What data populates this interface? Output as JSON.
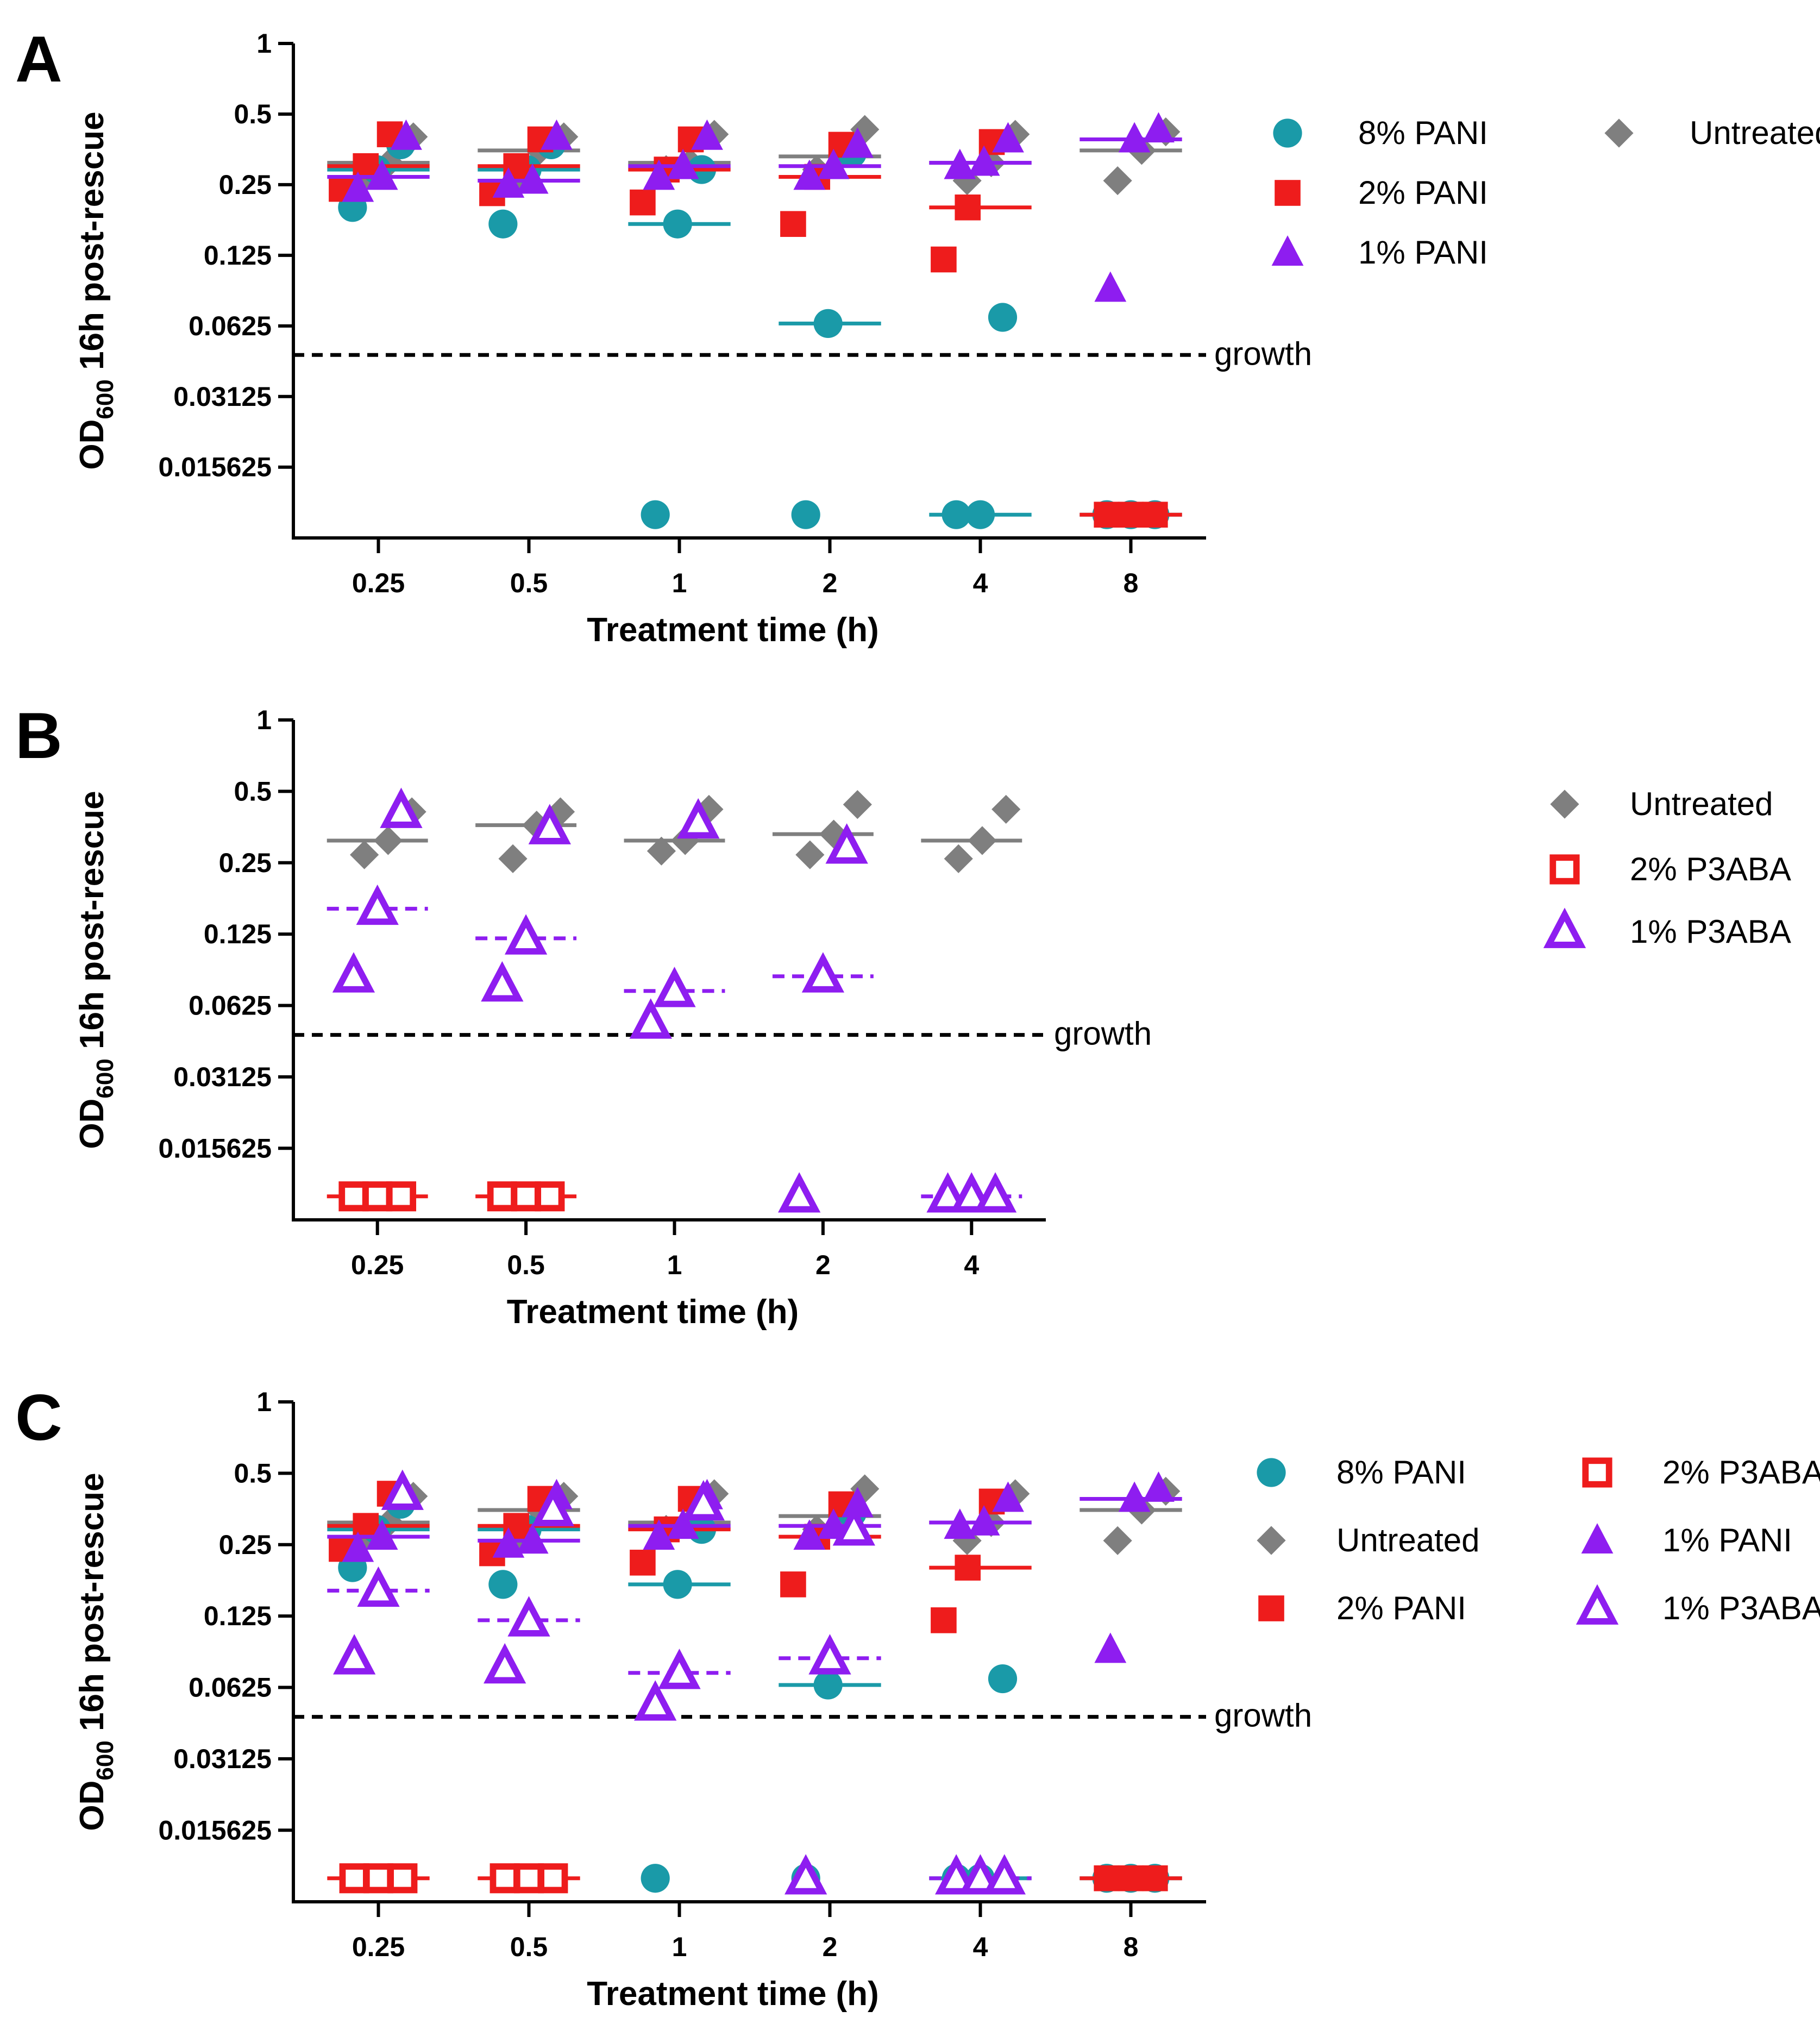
{
  "colors": {
    "pani8": "#1a9aa8",
    "pani2": "#ee1c1c",
    "pani1": "#8e1df0",
    "untreated": "#7f7f7f",
    "p3aba2": "#ee1c1c",
    "p3aba1": "#8e1df0",
    "axis": "#000000"
  },
  "series_meta": {
    "pani8": {
      "name": "8% PANI",
      "marker": "circle",
      "fill": true,
      "median_style": "solid"
    },
    "pani2": {
      "name": "2% PANI",
      "marker": "square",
      "fill": true,
      "median_style": "solid"
    },
    "pani1": {
      "name": "1% PANI",
      "marker": "triangle",
      "fill": true,
      "median_style": "solid"
    },
    "untreated": {
      "name": "Untreated",
      "marker": "diamond",
      "fill": true,
      "median_style": "solid"
    },
    "p3aba2": {
      "name": "2% P3ABA",
      "marker": "square",
      "fill": false,
      "median_style": "solid"
    },
    "p3aba1": {
      "name": "1% P3ABA",
      "marker": "triangle",
      "fill": false,
      "median_style": "dashed"
    }
  },
  "chart_data": [
    {
      "panel": "A",
      "type": "scatter",
      "xlabel": "Treatment time (h)",
      "ylabel_main": "OD",
      "ylabel_sub": "600",
      "ylabel_rest": " 16h post-rescue",
      "categories": [
        "0.25",
        "0.5",
        "1",
        "2",
        "4",
        "8"
      ],
      "yscale": "log2",
      "ylim": [
        0.0078,
        1
      ],
      "yticks": [
        "1",
        "0.5",
        "0.25",
        "0.125",
        "0.0625",
        "0.03125",
        "0.015625"
      ],
      "threshold": {
        "value": 0.047,
        "label": "growth"
      },
      "legend_order": [
        "pani8",
        "pani2",
        "pani1",
        "untreated"
      ],
      "series": [
        {
          "key": "pani8",
          "points": [
            [
              0.25,
              0.2
            ],
            [
              0.25,
              0.29
            ],
            [
              0.25,
              0.37
            ],
            [
              0.5,
              0.17
            ],
            [
              0.5,
              0.29
            ],
            [
              0.5,
              0.37
            ],
            [
              1,
              0.0098
            ],
            [
              1,
              0.17
            ],
            [
              1,
              0.29
            ],
            [
              2,
              0.0098
            ],
            [
              2,
              0.064
            ],
            [
              2,
              0.34
            ],
            [
              4,
              0.0098
            ],
            [
              4,
              0.0098
            ],
            [
              4,
              0.068
            ],
            [
              8,
              0.0098
            ],
            [
              8,
              0.0098
            ],
            [
              8,
              0.0098
            ]
          ],
          "medians": [
            0.29,
            0.29,
            0.17,
            0.064,
            0.0098,
            0.0098
          ]
        },
        {
          "key": "pani2",
          "points": [
            [
              0.25,
              0.24
            ],
            [
              0.25,
              0.3
            ],
            [
              0.25,
              0.41
            ],
            [
              0.5,
              0.23
            ],
            [
              0.5,
              0.3
            ],
            [
              0.5,
              0.39
            ],
            [
              1,
              0.21
            ],
            [
              1,
              0.29
            ],
            [
              1,
              0.39
            ],
            [
              2,
              0.17
            ],
            [
              2,
              0.27
            ],
            [
              2,
              0.37
            ],
            [
              4,
              0.12
            ],
            [
              4,
              0.2
            ],
            [
              4,
              0.38
            ],
            [
              8,
              0.0098
            ],
            [
              8,
              0.0098
            ],
            [
              8,
              0.0098
            ]
          ],
          "medians": [
            0.3,
            0.3,
            0.29,
            0.27,
            0.2,
            0.0098
          ]
        },
        {
          "key": "pani1",
          "points": [
            [
              0.25,
              0.24
            ],
            [
              0.25,
              0.27
            ],
            [
              0.25,
              0.4
            ],
            [
              0.5,
              0.25
            ],
            [
              0.5,
              0.26
            ],
            [
              0.5,
              0.4
            ],
            [
              1,
              0.27
            ],
            [
              1,
              0.3
            ],
            [
              1,
              0.4
            ],
            [
              2,
              0.27
            ],
            [
              2,
              0.3
            ],
            [
              2,
              0.37
            ],
            [
              4,
              0.3
            ],
            [
              4,
              0.31
            ],
            [
              4,
              0.39
            ],
            [
              8,
              0.09
            ],
            [
              8,
              0.39
            ],
            [
              8,
              0.43
            ]
          ],
          "medians": [
            0.27,
            0.26,
            0.3,
            0.3,
            0.31,
            0.39
          ]
        },
        {
          "key": "untreated",
          "points": [
            [
              0.25,
              0.27
            ],
            [
              0.25,
              0.31
            ],
            [
              0.25,
              0.4
            ],
            [
              0.5,
              0.26
            ],
            [
              0.5,
              0.35
            ],
            [
              0.5,
              0.4
            ],
            [
              1,
              0.29
            ],
            [
              1,
              0.31
            ],
            [
              1,
              0.41
            ],
            [
              2,
              0.29
            ],
            [
              2,
              0.33
            ],
            [
              2,
              0.43
            ],
            [
              4,
              0.26
            ],
            [
              4,
              0.31
            ],
            [
              4,
              0.41
            ],
            [
              8,
              0.26
            ],
            [
              8,
              0.35
            ],
            [
              8,
              0.42
            ]
          ],
          "medians": [
            0.31,
            0.35,
            0.31,
            0.33,
            0.31,
            0.35
          ]
        }
      ]
    },
    {
      "panel": "B",
      "type": "scatter",
      "xlabel": "Treatment time (h)",
      "ylabel_main": "OD",
      "ylabel_sub": "600",
      "ylabel_rest": " 16h post-rescue",
      "categories": [
        "0.25",
        "0.5",
        "1",
        "2",
        "4"
      ],
      "yscale": "log2",
      "ylim": [
        0.0078,
        1
      ],
      "yticks": [
        "1",
        "0.5",
        "0.25",
        "0.125",
        "0.0625",
        "0.03125",
        "0.015625"
      ],
      "threshold": {
        "value": 0.047,
        "label": "growth"
      },
      "legend_order": [
        "untreated",
        "p3aba2",
        "p3aba1"
      ],
      "series": [
        {
          "key": "untreated",
          "points": [
            [
              0.25,
              0.27
            ],
            [
              0.25,
              0.31
            ],
            [
              0.25,
              0.41
            ],
            [
              0.5,
              0.26
            ],
            [
              0.5,
              0.36
            ],
            [
              0.5,
              0.41
            ],
            [
              1,
              0.28
            ],
            [
              1,
              0.31
            ],
            [
              1,
              0.42
            ],
            [
              2,
              0.27
            ],
            [
              2,
              0.33
            ],
            [
              2,
              0.44
            ],
            [
              4,
              0.26
            ],
            [
              4,
              0.31
            ],
            [
              4,
              0.42
            ]
          ],
          "medians": [
            0.31,
            0.36,
            0.31,
            0.33,
            0.31
          ]
        },
        {
          "key": "p3aba2",
          "points": [
            [
              0.25,
              0.0098
            ],
            [
              0.25,
              0.0098
            ],
            [
              0.25,
              0.0098
            ],
            [
              0.5,
              0.0098
            ],
            [
              0.5,
              0.0098
            ],
            [
              0.5,
              0.0098
            ]
          ],
          "medians": [
            0.0098,
            0.0098,
            null,
            null,
            null
          ]
        },
        {
          "key": "p3aba1",
          "points": [
            [
              0.25,
              0.083
            ],
            [
              0.25,
              0.16
            ],
            [
              0.25,
              0.41
            ],
            [
              0.5,
              0.076
            ],
            [
              0.5,
              0.12
            ],
            [
              0.5,
              0.35
            ],
            [
              1,
              0.053
            ],
            [
              1,
              0.072
            ],
            [
              1,
              0.37
            ],
            [
              2,
              0.0098
            ],
            [
              2,
              0.083
            ],
            [
              2,
              0.29
            ],
            [
              4,
              0.0098
            ],
            [
              4,
              0.0098
            ],
            [
              4,
              0.0098
            ]
          ],
          "medians": [
            0.16,
            0.12,
            0.072,
            0.083,
            0.0098
          ]
        }
      ]
    },
    {
      "panel": "C",
      "type": "scatter",
      "xlabel": "Treatment time (h)",
      "ylabel_main": "OD",
      "ylabel_sub": "600",
      "ylabel_rest": " 16h post-rescue",
      "categories": [
        "0.25",
        "0.5",
        "1",
        "2",
        "4",
        "8"
      ],
      "yscale": "log2",
      "ylim": [
        0.0078,
        1
      ],
      "yticks": [
        "1",
        "0.5",
        "0.25",
        "0.125",
        "0.0625",
        "0.03125",
        "0.015625"
      ],
      "threshold": {
        "value": 0.047,
        "label": "growth"
      },
      "legend_order": [
        "pani8",
        "untreated",
        "pani2",
        "p3aba2",
        "pani1",
        "p3aba1"
      ],
      "series": [
        {
          "key": "pani8",
          "points": [
            [
              0.25,
              0.2
            ],
            [
              0.25,
              0.29
            ],
            [
              0.25,
              0.37
            ],
            [
              0.5,
              0.17
            ],
            [
              0.5,
              0.29
            ],
            [
              0.5,
              0.37
            ],
            [
              1,
              0.0098
            ],
            [
              1,
              0.17
            ],
            [
              1,
              0.29
            ],
            [
              2,
              0.0098
            ],
            [
              2,
              0.064
            ],
            [
              2,
              0.34
            ],
            [
              4,
              0.0098
            ],
            [
              4,
              0.0098
            ],
            [
              4,
              0.068
            ],
            [
              8,
              0.0098
            ],
            [
              8,
              0.0098
            ],
            [
              8,
              0.0098
            ]
          ],
          "medians": [
            0.29,
            0.29,
            0.17,
            0.064,
            0.0098,
            0.0098
          ]
        },
        {
          "key": "pani2",
          "points": [
            [
              0.25,
              0.24
            ],
            [
              0.25,
              0.3
            ],
            [
              0.25,
              0.41
            ],
            [
              0.5,
              0.23
            ],
            [
              0.5,
              0.3
            ],
            [
              0.5,
              0.39
            ],
            [
              1,
              0.21
            ],
            [
              1,
              0.29
            ],
            [
              1,
              0.39
            ],
            [
              2,
              0.17
            ],
            [
              2,
              0.27
            ],
            [
              2,
              0.37
            ],
            [
              4,
              0.12
            ],
            [
              4,
              0.2
            ],
            [
              4,
              0.38
            ],
            [
              8,
              0.0098
            ],
            [
              8,
              0.0098
            ],
            [
              8,
              0.0098
            ]
          ],
          "medians": [
            0.3,
            0.3,
            0.29,
            0.27,
            0.2,
            0.0098
          ]
        },
        {
          "key": "pani1",
          "points": [
            [
              0.25,
              0.24
            ],
            [
              0.25,
              0.27
            ],
            [
              0.25,
              0.4
            ],
            [
              0.5,
              0.25
            ],
            [
              0.5,
              0.26
            ],
            [
              0.5,
              0.4
            ],
            [
              1,
              0.27
            ],
            [
              1,
              0.3
            ],
            [
              1,
              0.4
            ],
            [
              2,
              0.27
            ],
            [
              2,
              0.3
            ],
            [
              2,
              0.37
            ],
            [
              4,
              0.3
            ],
            [
              4,
              0.31
            ],
            [
              4,
              0.39
            ],
            [
              8,
              0.09
            ],
            [
              8,
              0.39
            ],
            [
              8,
              0.43
            ]
          ],
          "medians": [
            0.27,
            0.26,
            0.3,
            0.3,
            0.31,
            0.39
          ]
        },
        {
          "key": "untreated",
          "points": [
            [
              0.25,
              0.27
            ],
            [
              0.25,
              0.31
            ],
            [
              0.25,
              0.4
            ],
            [
              0.5,
              0.26
            ],
            [
              0.5,
              0.35
            ],
            [
              0.5,
              0.4
            ],
            [
              1,
              0.29
            ],
            [
              1,
              0.31
            ],
            [
              1,
              0.41
            ],
            [
              2,
              0.29
            ],
            [
              2,
              0.33
            ],
            [
              2,
              0.43
            ],
            [
              4,
              0.26
            ],
            [
              4,
              0.31
            ],
            [
              4,
              0.41
            ],
            [
              8,
              0.26
            ],
            [
              8,
              0.35
            ],
            [
              8,
              0.42
            ]
          ],
          "medians": [
            0.31,
            0.35,
            0.31,
            0.33,
            0.31,
            0.35
          ]
        },
        {
          "key": "p3aba2",
          "points": [
            [
              0.25,
              0.0098
            ],
            [
              0.25,
              0.0098
            ],
            [
              0.25,
              0.0098
            ],
            [
              0.5,
              0.0098
            ],
            [
              0.5,
              0.0098
            ],
            [
              0.5,
              0.0098
            ]
          ],
          "medians": [
            0.0098,
            0.0098,
            null,
            null,
            null,
            null
          ]
        },
        {
          "key": "p3aba1",
          "points": [
            [
              0.25,
              0.083
            ],
            [
              0.25,
              0.16
            ],
            [
              0.25,
              0.41
            ],
            [
              0.5,
              0.076
            ],
            [
              0.5,
              0.12
            ],
            [
              0.5,
              0.35
            ],
            [
              1,
              0.053
            ],
            [
              1,
              0.072
            ],
            [
              1,
              0.37
            ],
            [
              2,
              0.0098
            ],
            [
              2,
              0.083
            ],
            [
              2,
              0.29
            ],
            [
              4,
              0.0098
            ],
            [
              4,
              0.0098
            ],
            [
              4,
              0.0098
            ]
          ],
          "medians": [
            0.16,
            0.12,
            0.072,
            0.083,
            0.0098,
            null
          ]
        }
      ]
    }
  ]
}
